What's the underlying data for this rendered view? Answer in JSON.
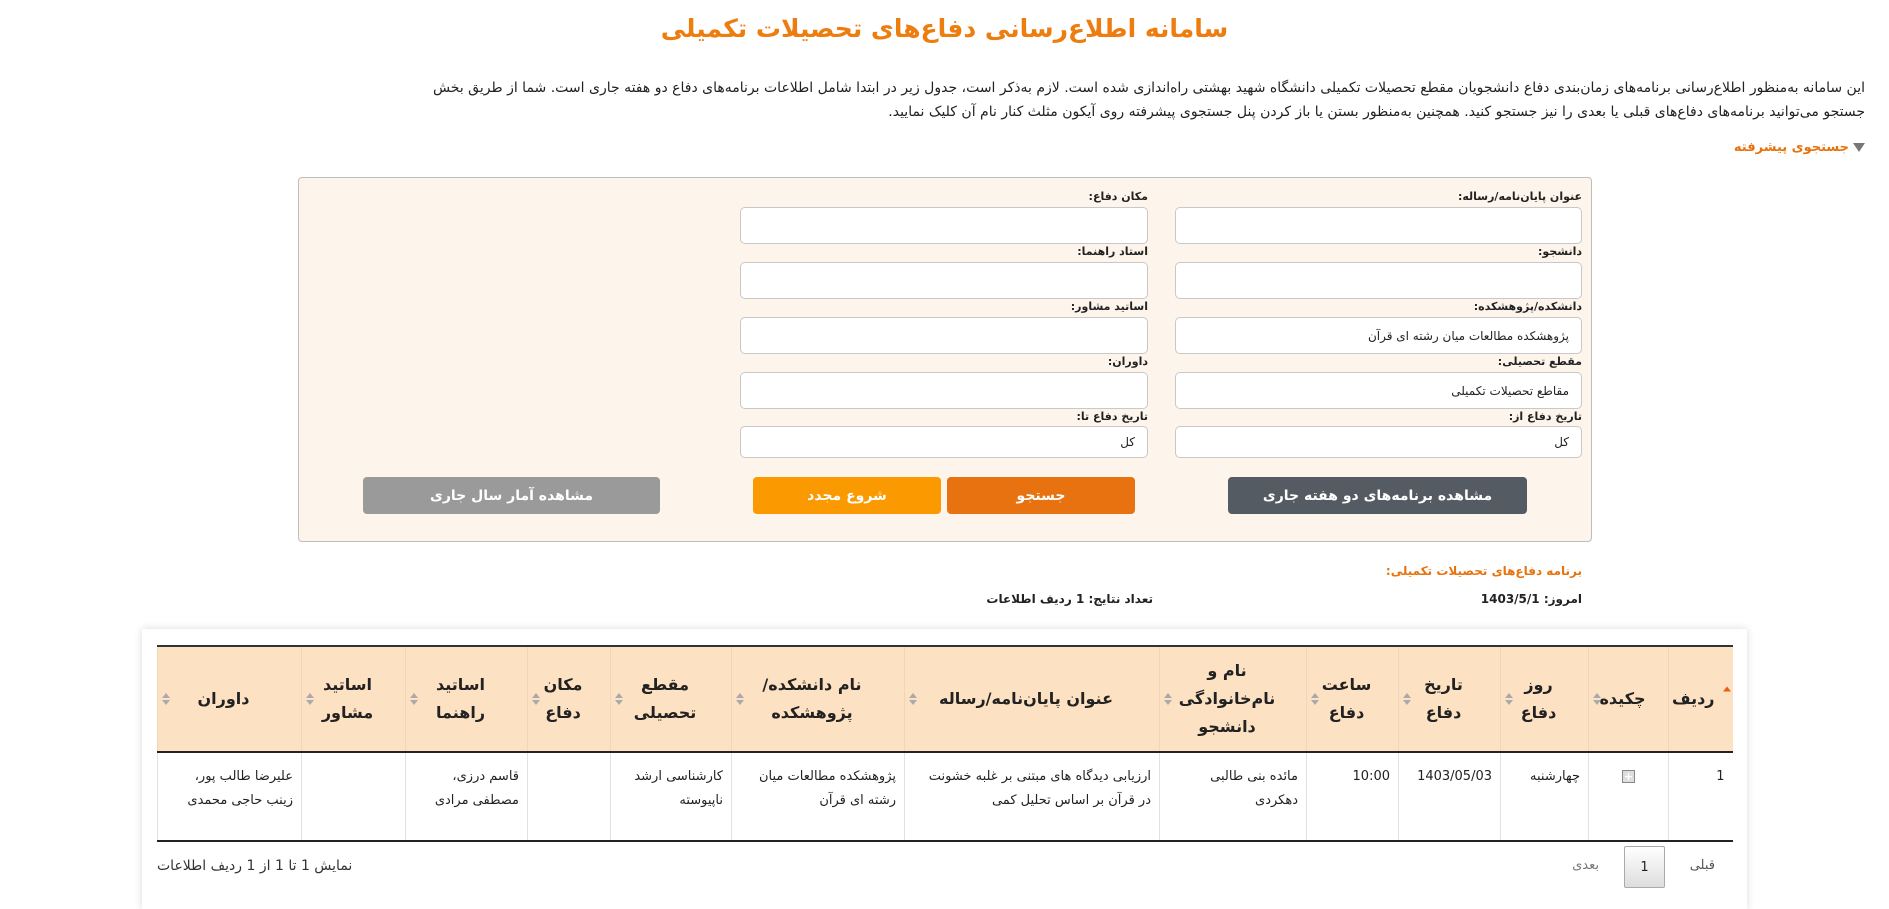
{
  "title": "سامانه اطلاع‌رسانی دفاع‌های تحصیلات تکمیلی",
  "intro": "این سامانه به‌منظور اطلاع‌رسانی برنامه‌های زمان‌بندی دفاع دانشجویان مقطع تحصیلات تکمیلی دانشگاه شهید بهشتی راه‌اندازی شده است. لازم به‌ذکر است، جدول زیر در ابتدا شامل اطلاعات برنامه‌های دفاع دو هفته جاری است. شما از طریق بخش جستجو می‌توانید برنامه‌های دفاع‌های قبلی یا بعدی را نیز جستجو کنید. همچنین به‌منظور بستن یا باز کردن پنل جستجوی پیشرفته روی آیکون مثلث کنار نام آن کلیک نمایید.",
  "advanced_search": "جستجوی پیشرفته",
  "form": {
    "thesis_title": {
      "label": "عنوان پایان‌نامه/رساله:",
      "value": ""
    },
    "place": {
      "label": "مکان دفاع:",
      "value": ""
    },
    "student": {
      "label": "دانشجو:",
      "value": ""
    },
    "supervisor": {
      "label": "استاد راهنما:",
      "value": ""
    },
    "faculty": {
      "label": "دانشکده/پژوهشکده:",
      "value": "پژوهشکده مطالعات میان رشته ای قرآن"
    },
    "advisors": {
      "label": "اساتید مشاور:",
      "value": ""
    },
    "degree": {
      "label": "مقطع تحصیلی:",
      "value": "مقاطع تحصیلات تکمیلی"
    },
    "judges": {
      "label": "داوران:",
      "value": ""
    },
    "date_from": {
      "label": "تاریخ دفاع از:",
      "value": "کل"
    },
    "date_to": {
      "label": "تاریخ دفاع تا:",
      "value": "کل"
    }
  },
  "buttons": {
    "two_weeks": "مشاهده برنامه‌های دو هفته جاری",
    "search": "جستجو",
    "reset": "شروع مجدد",
    "stats": "مشاهده آمار سال جاری"
  },
  "colors": {
    "accent": "#ee7d10",
    "search": "#e8720f",
    "reset": "#fa9a00",
    "dark": "#555b62",
    "gray": "#9a9a9a",
    "header_bg": "#fde1c3"
  },
  "results": {
    "heading": "برنامه دفاع‌های تحصیلات تکمیلی:",
    "today": "امروز: 1403/5/1",
    "count": "تعداد نتایج: 1 ردیف اطلاعات"
  },
  "table": {
    "headers": [
      "ردیف",
      "چکیده",
      "روز دفاع",
      "تاریخ دفاع",
      "ساعت دفاع",
      "نام و نام‌خانوادگی دانشجو",
      "عنوان پایان‌نامه/رساله",
      "نام دانشکده/ پژوهشکده",
      "مقطع تحصیلی",
      "مکان دفاع",
      "اساتید راهنما",
      "اساتید مشاور",
      "داوران"
    ],
    "rows": [
      [
        "1",
        "",
        "چهارشنبه",
        "1403/05/03",
        "10:00",
        "مائده بنی طالبی دهکردی",
        "ارزیابی دیدگاه های مبتنی بر غلبه خشونت در قرآن بر اساس تحلیل کمی",
        "پژوهشکده مطالعات میان رشته ای قرآن",
        "کارشناسی ارشد ناپیوسته",
        "",
        "قاسم درزی، مصطفی مرادی",
        "",
        "علیرضا طالب پور، زینب حاجی محمدی"
      ]
    ]
  },
  "pagination": {
    "prev": "قبلی",
    "page": "1",
    "next": "بعدی",
    "info": "نمایش 1 تا 1 از 1 ردیف اطلاعات"
  }
}
